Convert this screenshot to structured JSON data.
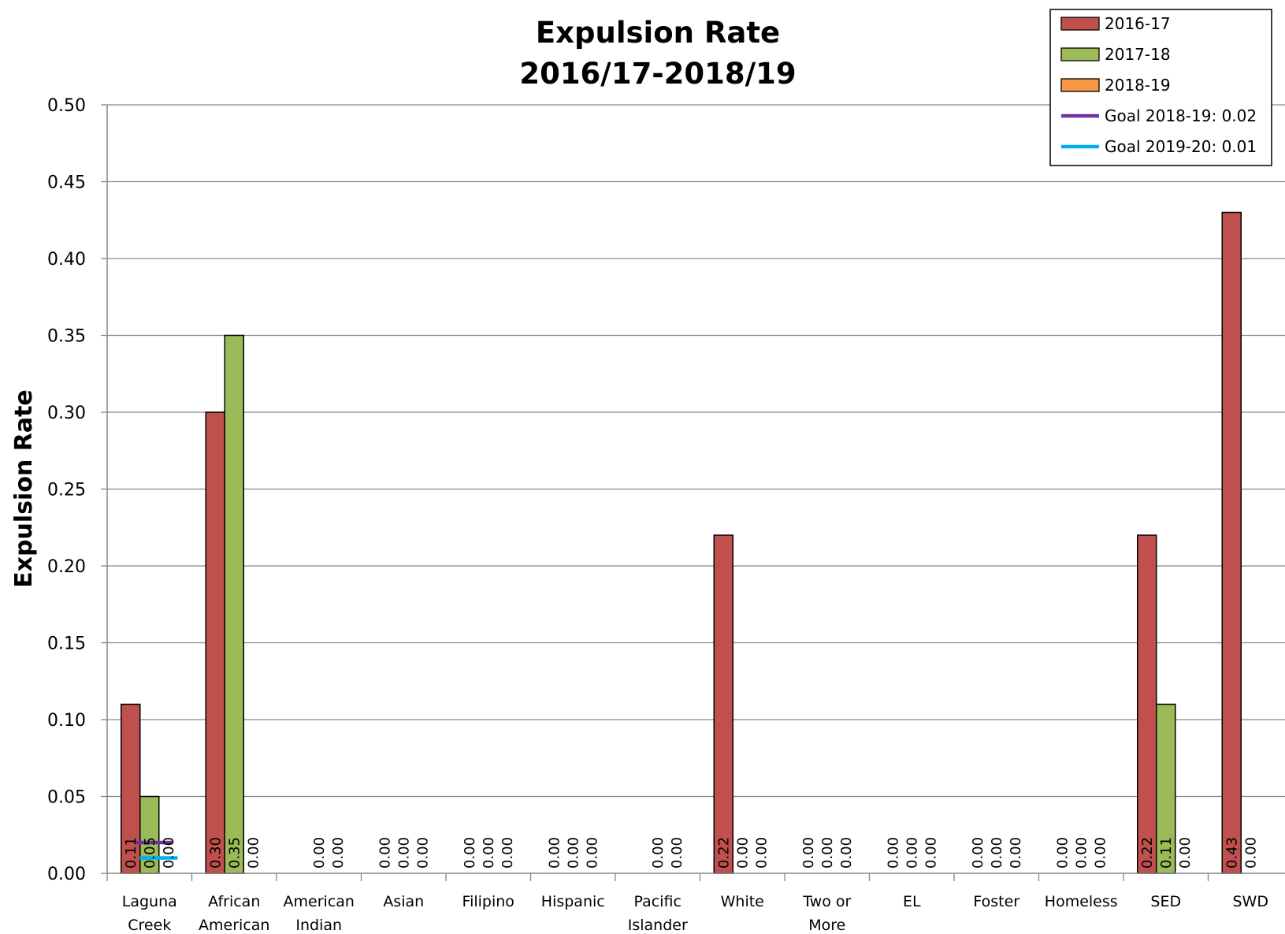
{
  "chart_data": {
    "type": "bar",
    "title": [
      "Expulsion Rate",
      "2016/17-2018/19"
    ],
    "xlabel": "",
    "ylabel": "Expulsion Rate",
    "ylim": [
      0,
      0.5
    ],
    "yticks": [
      "0.00",
      "0.05",
      "0.10",
      "0.15",
      "0.20",
      "0.25",
      "0.30",
      "0.35",
      "0.40",
      "0.45",
      "0.50"
    ],
    "grid": true,
    "legend_position": "top-right",
    "categories": [
      [
        "Laguna",
        "Creek"
      ],
      [
        "African",
        "American"
      ],
      [
        "American",
        "Indian"
      ],
      [
        "Asian"
      ],
      [
        "Filipino"
      ],
      [
        "Hispanic"
      ],
      [
        "Pacific",
        "Islander"
      ],
      [
        "White"
      ],
      [
        "Two or",
        "More"
      ],
      [
        "EL"
      ],
      [
        "Foster"
      ],
      [
        "Homeless"
      ],
      [
        "SED"
      ],
      [
        "SWD"
      ]
    ],
    "series": [
      {
        "name": "2016-17",
        "color": "#c0504d",
        "values": [
          0.11,
          0.3,
          null,
          0.0,
          0.0,
          0.0,
          null,
          0.22,
          0.0,
          0.0,
          0.0,
          0.0,
          0.22,
          0.43
        ],
        "labels": [
          "0.11",
          "0.30",
          "",
          "0.00",
          "0.00",
          "0.00",
          "",
          "0.22",
          "0.00",
          "0.00",
          "0.00",
          "0.00",
          "0.22",
          "0.43"
        ]
      },
      {
        "name": "2017-18",
        "color": "#9bbb59",
        "values": [
          0.05,
          0.35,
          0.0,
          0.0,
          0.0,
          0.0,
          0.0,
          0.0,
          0.0,
          0.0,
          0.0,
          0.0,
          0.11,
          0.0
        ],
        "labels": [
          "0.05",
          "0.35",
          "0.00",
          "0.00",
          "0.00",
          "0.00",
          "0.00",
          "0.00",
          "0.00",
          "0.00",
          "0.00",
          "0.00",
          "0.11",
          "0.00"
        ]
      },
      {
        "name": "2018-19",
        "color": "#f79646",
        "values": [
          0.0,
          0.0,
          0.0,
          0.0,
          0.0,
          0.0,
          0.0,
          0.0,
          0.0,
          0.0,
          0.0,
          0.0,
          0.0,
          null
        ],
        "labels": [
          "0.00",
          "0.00",
          "0.00",
          "0.00",
          "0.00",
          "0.00",
          "0.00",
          "0.00",
          "0.00",
          "0.00",
          "0.00",
          "0.00",
          "0.00",
          ""
        ]
      }
    ],
    "goal_lines": [
      {
        "name": "Goal 2018-19: 0.02",
        "value": 0.02,
        "color": "#7030a0"
      },
      {
        "name": "Goal 2019-20: 0.01",
        "value": 0.01,
        "color": "#00b0f0"
      }
    ]
  }
}
